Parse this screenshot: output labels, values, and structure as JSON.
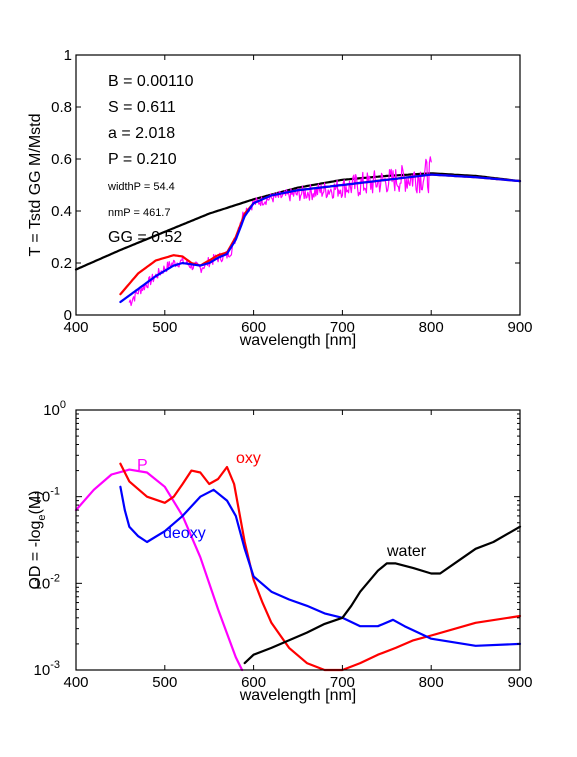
{
  "chart_data": [
    {
      "type": "line",
      "xlabel": "wavelength [nm]",
      "ylabel": "T = Tstd GG M/Mstd",
      "xlim": [
        400,
        900
      ],
      "ylim": [
        0,
        1
      ],
      "xticks": [
        "400",
        "500",
        "600",
        "700",
        "800",
        "900"
      ],
      "yticks": [
        "0",
        "0.2",
        "0.4",
        "0.6",
        "0.8",
        "1"
      ],
      "annotations": [
        {
          "text": "B = 0.00110",
          "size": "large"
        },
        {
          "text": "S = 0.611",
          "size": "large"
        },
        {
          "text": "a = 2.018",
          "size": "large"
        },
        {
          "text": "P = 0.210",
          "size": "large"
        },
        {
          "text": "widthP = 54.4",
          "size": "small"
        },
        {
          "text": "nmP = 461.7",
          "size": "small"
        },
        {
          "text": "GG = 0.52",
          "size": "large"
        }
      ],
      "series": [
        {
          "color": "#000000",
          "style": "smooth",
          "x": [
            400,
            450,
            500,
            550,
            600,
            650,
            700,
            750,
            800,
            850,
            900
          ],
          "y": [
            0.175,
            0.25,
            0.32,
            0.39,
            0.445,
            0.49,
            0.52,
            0.535,
            0.545,
            0.535,
            0.515
          ]
        },
        {
          "color": "#ff00ff",
          "style": "noisy",
          "x": [
            460,
            470,
            480,
            490,
            500,
            510,
            520,
            530,
            540,
            550,
            560,
            570,
            575,
            580,
            585,
            590,
            600,
            610,
            620,
            640,
            660,
            680,
            700,
            720,
            740,
            760,
            780,
            800
          ],
          "y": [
            0.05,
            0.09,
            0.12,
            0.15,
            0.18,
            0.2,
            0.205,
            0.19,
            0.18,
            0.205,
            0.22,
            0.23,
            0.25,
            0.3,
            0.36,
            0.4,
            0.43,
            0.44,
            0.45,
            0.46,
            0.47,
            0.48,
            0.49,
            0.5,
            0.51,
            0.52,
            0.53,
            0.54
          ],
          "noise": [
            0.03,
            0.02,
            0.02,
            0.02,
            0.02,
            0.02,
            0.02,
            0.02,
            0.02,
            0.02,
            0.02,
            0.02,
            0.02,
            0.02,
            0.02,
            0.02,
            0.02,
            0.02,
            0.02,
            0.025,
            0.03,
            0.035,
            0.04,
            0.05,
            0.05,
            0.05,
            0.06,
            0.07
          ]
        },
        {
          "color": "#ff0000",
          "style": "smooth",
          "x": [
            450,
            470,
            490,
            510,
            520,
            530,
            540,
            550,
            560,
            570,
            580,
            590,
            600,
            620,
            650,
            700,
            750,
            800,
            850,
            900
          ],
          "y": [
            0.08,
            0.16,
            0.21,
            0.23,
            0.225,
            0.2,
            0.19,
            0.21,
            0.23,
            0.24,
            0.3,
            0.39,
            0.43,
            0.46,
            0.48,
            0.5,
            0.52,
            0.54,
            0.53,
            0.515
          ]
        },
        {
          "color": "#0000ff",
          "style": "smooth",
          "x": [
            450,
            470,
            490,
            510,
            520,
            530,
            540,
            550,
            560,
            570,
            580,
            590,
            600,
            620,
            650,
            700,
            750,
            800,
            850,
            900
          ],
          "y": [
            0.05,
            0.1,
            0.15,
            0.19,
            0.2,
            0.195,
            0.19,
            0.2,
            0.22,
            0.235,
            0.29,
            0.38,
            0.43,
            0.46,
            0.48,
            0.5,
            0.52,
            0.54,
            0.53,
            0.515
          ]
        }
      ]
    },
    {
      "type": "line",
      "xlabel": "wavelength [nm]",
      "ylabel": "OD = -log",
      "ylabel_sub": "e",
      "ylabel_tail": "(M)",
      "xlim": [
        400,
        900
      ],
      "ylim": [
        0.001,
        1
      ],
      "yscale": "log",
      "xticks": [
        "400",
        "500",
        "600",
        "700",
        "800",
        "900"
      ],
      "yticks": [
        {
          "base": "10",
          "exp": "-3"
        },
        {
          "base": "10",
          "exp": "-2"
        },
        {
          "base": "10",
          "exp": "-1"
        },
        {
          "base": "10",
          "exp": "0"
        }
      ],
      "series": [
        {
          "name": "P",
          "color": "#ff00ff",
          "x": [
            400,
            420,
            440,
            460,
            480,
            500,
            520,
            540,
            560,
            580,
            587
          ],
          "y": [
            0.07,
            0.12,
            0.18,
            0.205,
            0.19,
            0.13,
            0.06,
            0.02,
            0.005,
            0.0014,
            0.001
          ]
        },
        {
          "name": "oxy",
          "color": "#ff0000",
          "x": [
            450,
            460,
            480,
            500,
            510,
            520,
            530,
            540,
            550,
            560,
            570,
            578,
            590,
            600,
            610,
            620,
            640,
            660,
            680,
            700,
            720,
            740,
            760,
            780,
            800,
            850,
            900
          ],
          "y": [
            0.24,
            0.15,
            0.1,
            0.085,
            0.1,
            0.14,
            0.2,
            0.19,
            0.14,
            0.16,
            0.22,
            0.14,
            0.03,
            0.011,
            0.006,
            0.0035,
            0.0018,
            0.0012,
            0.001,
            0.001,
            0.0012,
            0.0015,
            0.0018,
            0.0022,
            0.0025,
            0.0035,
            0.0042
          ]
        },
        {
          "name": "deoxy",
          "color": "#0000ff",
          "x": [
            450,
            455,
            460,
            470,
            480,
            500,
            520,
            540,
            555,
            570,
            580,
            590,
            600,
            620,
            640,
            660,
            680,
            700,
            720,
            740,
            757,
            770,
            800,
            850,
            900
          ],
          "y": [
            0.13,
            0.07,
            0.045,
            0.035,
            0.03,
            0.04,
            0.06,
            0.1,
            0.12,
            0.09,
            0.06,
            0.025,
            0.012,
            0.008,
            0.0065,
            0.0055,
            0.0045,
            0.004,
            0.0032,
            0.0032,
            0.0038,
            0.0032,
            0.0023,
            0.0019,
            0.002
          ]
        },
        {
          "name": "water",
          "color": "#000000",
          "x": [
            590,
            600,
            620,
            640,
            660,
            680,
            700,
            710,
            720,
            740,
            750,
            760,
            780,
            800,
            810,
            830,
            850,
            870,
            900
          ],
          "y": [
            0.0012,
            0.0015,
            0.0018,
            0.0022,
            0.0027,
            0.0034,
            0.004,
            0.0055,
            0.008,
            0.014,
            0.017,
            0.017,
            0.015,
            0.013,
            0.013,
            0.018,
            0.025,
            0.03,
            0.045
          ]
        }
      ]
    }
  ]
}
